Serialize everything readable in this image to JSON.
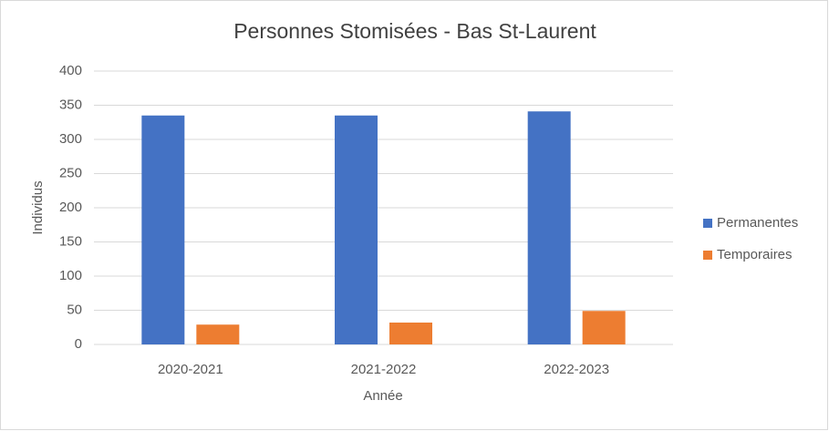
{
  "chart_data": {
    "type": "bar",
    "title": "Personnes Stomisées - Bas St-Laurent",
    "x_label": "Année",
    "y_label": "Individus",
    "categories": [
      "2020-2021",
      "2021-2022",
      "2022-2023"
    ],
    "series": [
      {
        "name": "Permanentes",
        "color": "#4472c4",
        "values": [
          335,
          335,
          341
        ]
      },
      {
        "name": "Temporaires",
        "color": "#ed7d31",
        "values": [
          29,
          32,
          49
        ]
      }
    ],
    "ylim": [
      0,
      400
    ],
    "yticks": [
      0,
      50,
      100,
      150,
      200,
      250,
      300,
      350,
      400
    ],
    "grid": true,
    "legend": "right"
  }
}
